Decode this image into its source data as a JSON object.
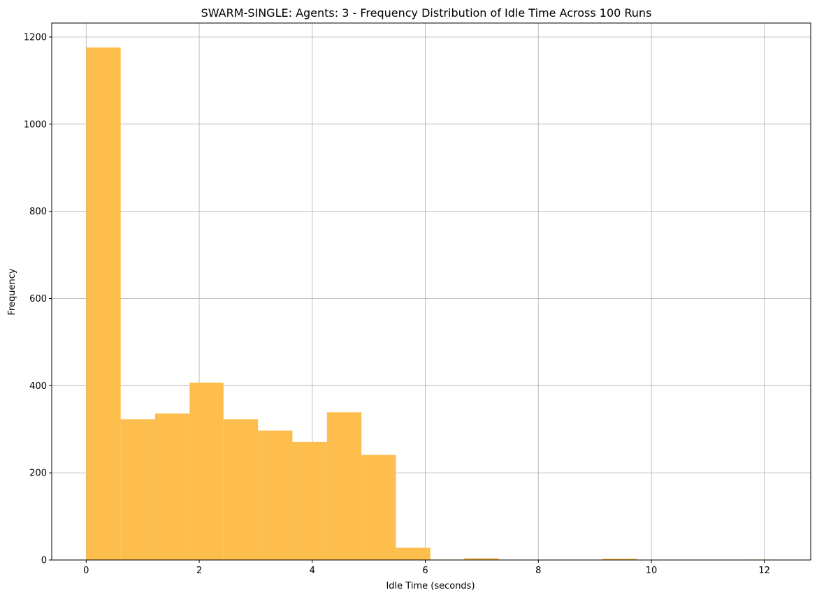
{
  "chart_data": {
    "type": "bar",
    "title": "SWARM-SINGLE: Agents: 3 - Frequency Distribution of Idle Time Across 100 Runs",
    "xlabel": "Idle Time (seconds)",
    "ylabel": "Frequency",
    "xlim": [
      -0.61,
      12.82
    ],
    "ylim": [
      0,
      1232
    ],
    "xticks": [
      0,
      2,
      4,
      6,
      8,
      10,
      12
    ],
    "yticks": [
      0,
      200,
      400,
      600,
      800,
      1000,
      1200
    ],
    "grid": true,
    "bar_color": "#FDBE4D",
    "bins": [
      {
        "x0": 0.0,
        "x1": 0.61,
        "value": 1176
      },
      {
        "x0": 0.61,
        "x1": 1.22,
        "value": 323
      },
      {
        "x0": 1.22,
        "x1": 1.83,
        "value": 336
      },
      {
        "x0": 1.83,
        "x1": 2.43,
        "value": 407
      },
      {
        "x0": 2.43,
        "x1": 3.04,
        "value": 323
      },
      {
        "x0": 3.04,
        "x1": 3.65,
        "value": 297
      },
      {
        "x0": 3.65,
        "x1": 4.26,
        "value": 271
      },
      {
        "x0": 4.26,
        "x1": 4.87,
        "value": 339
      },
      {
        "x0": 4.87,
        "x1": 5.48,
        "value": 241
      },
      {
        "x0": 5.48,
        "x1": 6.09,
        "value": 28
      },
      {
        "x0": 6.09,
        "x1": 6.69,
        "value": 1
      },
      {
        "x0": 6.69,
        "x1": 7.3,
        "value": 4
      },
      {
        "x0": 7.3,
        "x1": 7.91,
        "value": 0
      },
      {
        "x0": 7.91,
        "x1": 8.52,
        "value": 0
      },
      {
        "x0": 8.52,
        "x1": 9.13,
        "value": 0
      },
      {
        "x0": 9.13,
        "x1": 9.74,
        "value": 3
      },
      {
        "x0": 9.74,
        "x1": 10.35,
        "value": 0
      },
      {
        "x0": 10.35,
        "x1": 10.95,
        "value": 0
      },
      {
        "x0": 10.95,
        "x1": 11.56,
        "value": 0
      },
      {
        "x0": 11.56,
        "x1": 12.17,
        "value": 1
      }
    ]
  }
}
